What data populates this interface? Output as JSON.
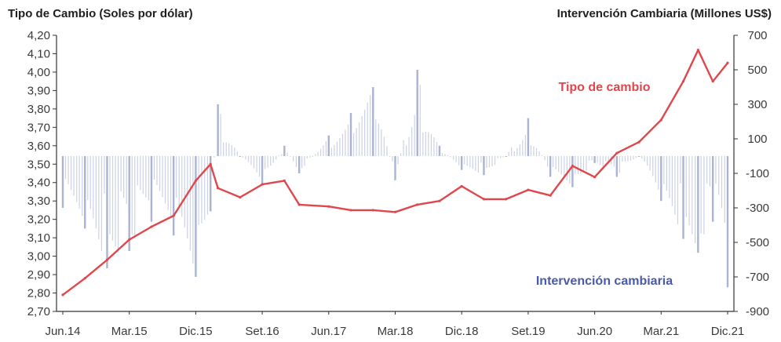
{
  "chart_data": {
    "type": "line",
    "title_left": "Tipo de Cambio (Soles por dólar)",
    "title_right": "Intervención Cambiaria (Millones US$)",
    "x_ticks": [
      "Jun.14",
      "Mar.15",
      "Dic.15",
      "Set.16",
      "Jun.17",
      "Mar.18",
      "Dic.18",
      "Set.19",
      "Jun.20",
      "Mar.21",
      "Dic.21"
    ],
    "y_left": {
      "ticks": [
        "4,20",
        "4,10",
        "4,00",
        "3,90",
        "3,80",
        "3,70",
        "3,60",
        "3,50",
        "3,40",
        "3,30",
        "3,20",
        "3,10",
        "3,00",
        "2,90",
        "2,80",
        "2,70"
      ],
      "ylim": [
        2.7,
        4.2
      ]
    },
    "y_right": {
      "ticks": [
        "700",
        "500",
        "300",
        "100",
        "-100",
        "-300",
        "-500",
        "-700",
        "-900"
      ],
      "ylim": [
        -900,
        700
      ]
    },
    "annotations": {
      "exchange_rate": "Tipo de cambio",
      "intervention": "Intervención cambiaria"
    },
    "series": [
      {
        "name": "Tipo de cambio",
        "axis": "left",
        "color": "#e0474c",
        "x": [
          "Jun.14",
          "Set.14",
          "Dic.14",
          "Mar.15",
          "Jun.15",
          "Set.15",
          "Dic.15",
          "Feb.16",
          "Mar.16",
          "Jun.16",
          "Set.16",
          "Dic.16",
          "Feb.17",
          "Jun.17",
          "Set.17",
          "Dic.17",
          "Mar.18",
          "Jun.18",
          "Set.18",
          "Dic.18",
          "Mar.19",
          "Jun.19",
          "Set.19",
          "Dic.19",
          "Mar.20",
          "Jun.20",
          "Set.20",
          "Dic.20",
          "Mar.21",
          "Jun.21",
          "Ago.21",
          "Oct.21",
          "Dic.21"
        ],
        "values": [
          2.79,
          2.88,
          2.98,
          3.09,
          3.16,
          3.22,
          3.41,
          3.5,
          3.37,
          3.32,
          3.39,
          3.41,
          3.28,
          3.27,
          3.25,
          3.25,
          3.24,
          3.28,
          3.3,
          3.38,
          3.31,
          3.31,
          3.36,
          3.33,
          3.49,
          3.43,
          3.56,
          3.62,
          3.74,
          3.95,
          4.12,
          3.95,
          4.05
        ]
      },
      {
        "name": "Intervención cambiaria",
        "axis": "right",
        "color": "#8d9ac6",
        "x": [
          "Jun.14",
          "Set.14",
          "Dic.14",
          "Mar.15",
          "Jun.15",
          "Set.15",
          "Dic.15",
          "Feb.16",
          "Mar.16",
          "Jun.16",
          "Set.16",
          "Dic.16",
          "Feb.17",
          "Jun.17",
          "Set.17",
          "Dic.17",
          "Mar.18",
          "Jun.18",
          "Set.18",
          "Dic.18",
          "Mar.19",
          "Jun.19",
          "Set.19",
          "Dic.19",
          "Mar.20",
          "Jun.20",
          "Set.20",
          "Dic.20",
          "Mar.21",
          "Jun.21",
          "Ago.21",
          "Oct.21",
          "Dic.21"
        ],
        "values": [
          -300,
          -420,
          -650,
          -550,
          -380,
          -460,
          -700,
          -320,
          300,
          0,
          -160,
          60,
          -100,
          120,
          250,
          400,
          -140,
          500,
          60,
          -80,
          -110,
          0,
          220,
          -120,
          -180,
          -40,
          -120,
          0,
          -260,
          -480,
          -560,
          -380,
          -760
        ]
      }
    ]
  }
}
